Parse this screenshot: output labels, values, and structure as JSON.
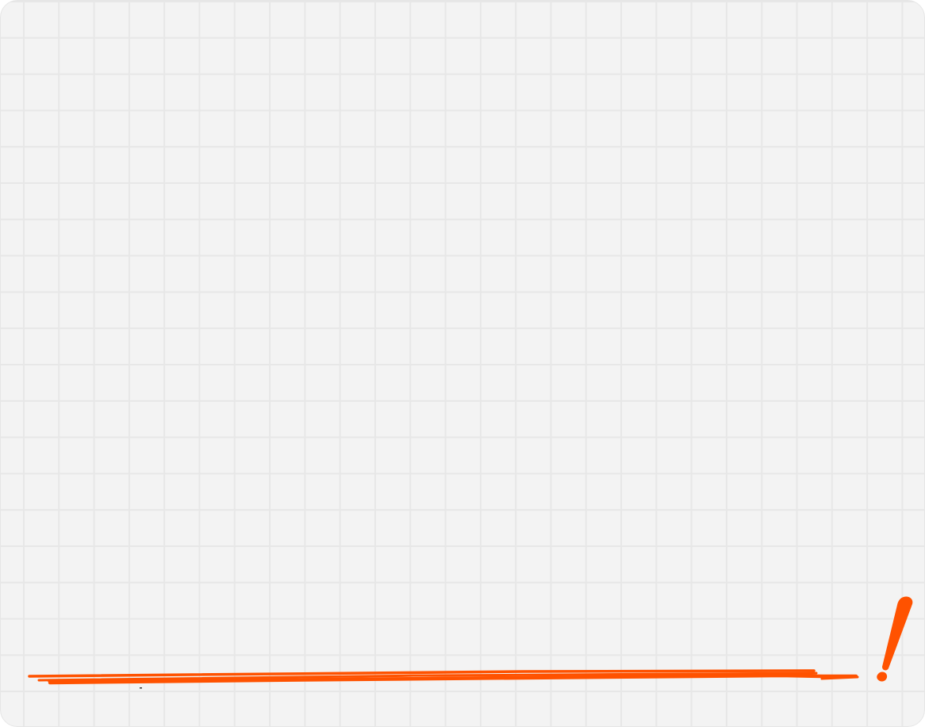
{
  "canvas": {
    "background_color": "#f3f3f3",
    "grid_color": "#e7e7e7",
    "accent_color": "#ff5200"
  },
  "icons": {
    "underline": "hand-drawn-underline-icon",
    "exclamation": "exclamation-mark-icon"
  }
}
